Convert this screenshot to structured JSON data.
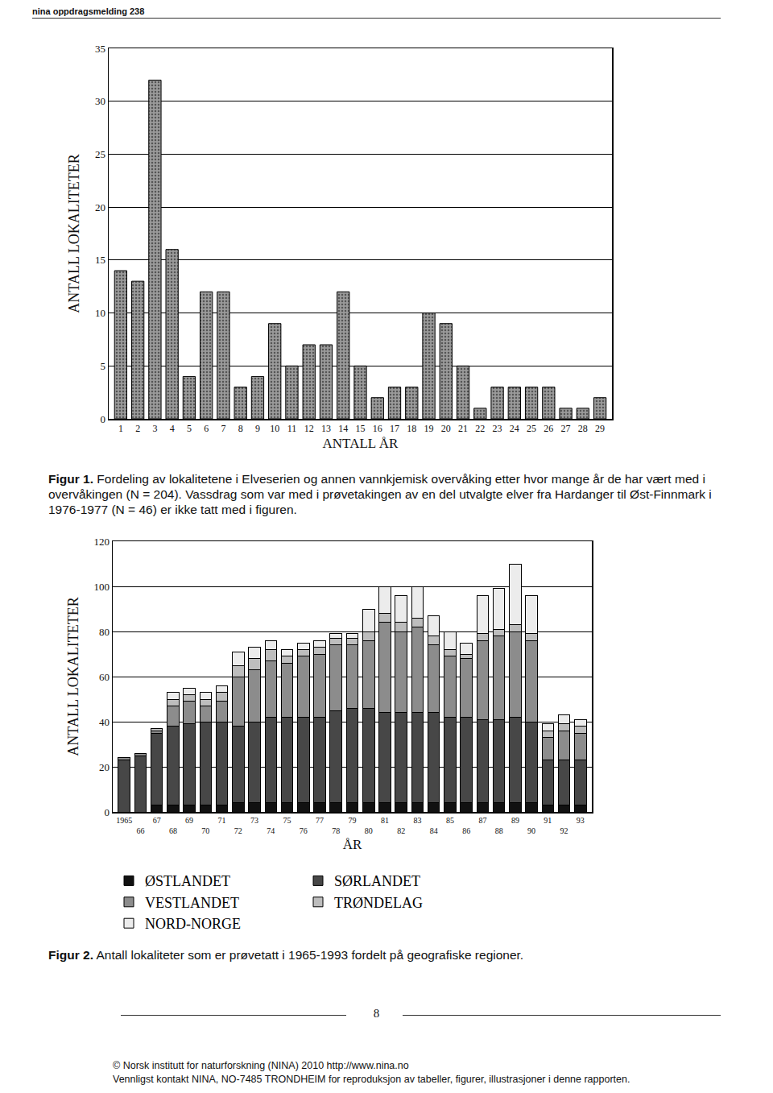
{
  "header": "nina oppdragsmelding 238",
  "chart_data": [
    {
      "type": "bar",
      "xlabel": "ANTALL ÅR",
      "ylabel": "ANTALL LOKALITETER",
      "categories": [
        "1",
        "2",
        "3",
        "4",
        "5",
        "6",
        "7",
        "8",
        "9",
        "10",
        "11",
        "12",
        "13",
        "14",
        "15",
        "16",
        "17",
        "18",
        "19",
        "20",
        "21",
        "22",
        "23",
        "24",
        "25",
        "26",
        "27",
        "28",
        "29"
      ],
      "values": [
        14,
        13,
        32,
        16,
        4,
        12,
        12,
        3,
        4,
        9,
        5,
        7,
        7,
        12,
        5,
        2,
        3,
        3,
        10,
        9,
        5,
        1,
        3,
        3,
        3,
        3,
        1,
        1,
        2
      ],
      "color": "#9a9a9a",
      "ylim": [
        0,
        35
      ],
      "yticks": [
        0,
        5,
        10,
        15,
        20,
        25,
        30,
        35
      ],
      "grid": true
    },
    {
      "type": "bar",
      "stacked": true,
      "xlabel": "ÅR",
      "ylabel": "ANTALL LOKALITETER",
      "categories": [
        "1965",
        "66",
        "67",
        "68",
        "69",
        "70",
        "71",
        "72",
        "73",
        "74",
        "75",
        "76",
        "77",
        "78",
        "79",
        "80",
        "81",
        "82",
        "83",
        "84",
        "85",
        "86",
        "87",
        "88",
        "89",
        "90",
        "91",
        "92",
        "93"
      ],
      "series": [
        {
          "name": "ØSTLANDET",
          "color": "#111111",
          "values": [
            0,
            0,
            3,
            3,
            3,
            3,
            3,
            4,
            4,
            4,
            4,
            4,
            4,
            4,
            4,
            4,
            4,
            4,
            4,
            4,
            4,
            4,
            4,
            4,
            4,
            4,
            3,
            3,
            3
          ]
        },
        {
          "name": "SØRLANDET",
          "color": "#474747",
          "values": [
            23,
            25,
            32,
            35,
            36,
            37,
            37,
            34,
            36,
            38,
            38,
            38,
            38,
            41,
            42,
            42,
            40,
            40,
            40,
            40,
            38,
            38,
            37,
            37,
            38,
            36,
            20,
            20,
            20
          ]
        },
        {
          "name": "VESTLANDET",
          "color": "#8c8c8c",
          "values": [
            1,
            1,
            1,
            9,
            10,
            7,
            9,
            22,
            23,
            25,
            24,
            27,
            28,
            29,
            28,
            30,
            40,
            36,
            38,
            30,
            27,
            26,
            35,
            37,
            38,
            36,
            10,
            13,
            12
          ]
        },
        {
          "name": "TRØNDELAG",
          "color": "#bdbdbd",
          "values": [
            0,
            0,
            1,
            3,
            3,
            3,
            4,
            5,
            5,
            5,
            3,
            3,
            3,
            3,
            3,
            4,
            4,
            4,
            4,
            4,
            3,
            2,
            3,
            3,
            3,
            3,
            3,
            3,
            3
          ]
        },
        {
          "name": "NORD-NORGE",
          "color": "#ececec",
          "values": [
            0,
            0,
            0,
            3,
            3,
            3,
            3,
            6,
            5,
            4,
            3,
            3,
            3,
            2,
            2,
            10,
            12,
            12,
            14,
            9,
            8,
            5,
            17,
            18,
            27,
            17,
            3,
            4,
            3
          ]
        }
      ],
      "ylim": [
        0,
        120
      ],
      "yticks": [
        0,
        20,
        40,
        60,
        80,
        100,
        120
      ],
      "grid": true,
      "legend": "bottom"
    }
  ],
  "captions": [
    {
      "label": "Figur 1.",
      "text": "Fordeling av lokalitetene i Elveserien og annen vannkjemisk overvåking etter hvor mange år de har vært med i overvåkingen (N = 204). Vassdrag som var med i prøvetakingen av en del utvalgte elver fra Hardanger til Øst-Finnmark i 1976-1977 (N = 46) er ikke tatt med i figuren."
    },
    {
      "label": "Figur 2.",
      "text": "Antall lokaliteter som er prøvetatt i 1965-1993 fordelt på geografiske regioner."
    }
  ],
  "page_number": "8",
  "footer": [
    "© Norsk institutt for naturforskning (NINA) 2010 http://www.nina.no",
    "Vennligst kontakt NINA, NO-7485 TRONDHEIM for reproduksjon av tabeller, figurer, illustrasjoner i denne rapporten."
  ]
}
